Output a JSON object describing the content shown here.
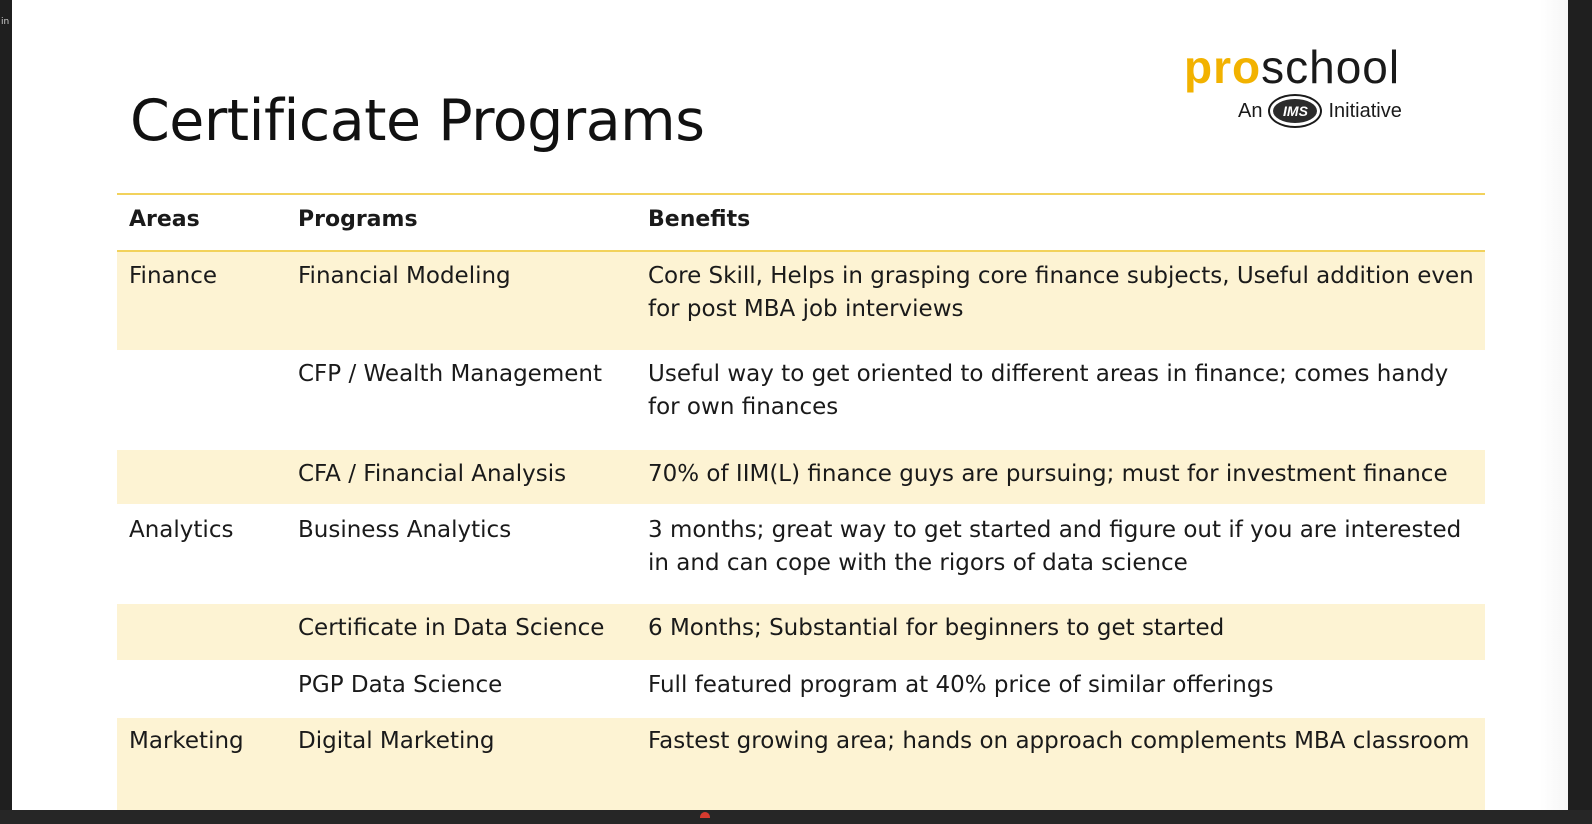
{
  "corner_text": "in",
  "title": "Certificate Programs",
  "logo": {
    "word_pro": "pro",
    "word_school": "school",
    "tag_prefix": "An",
    "badge": "IMS",
    "tag_suffix": "Initiative"
  },
  "colors": {
    "accent": "#f2b200",
    "row_shade": "#fdf3d3",
    "rule": "#f2d25c"
  },
  "table": {
    "headers": [
      "Areas",
      "Programs",
      "Benefits"
    ],
    "rows": [
      {
        "area": "Finance",
        "program": "Financial Modeling",
        "benefit": "Core Skill, Helps in grasping core finance subjects, Useful addition even for post MBA job interviews"
      },
      {
        "area": "",
        "program": "CFP / Wealth Management",
        "benefit": "Useful way to get oriented to different areas in finance; comes handy for own finances"
      },
      {
        "area": "",
        "program": "CFA / Financial Analysis",
        "benefit": "70% of IIM(L) finance guys are pursuing; must for investment finance"
      },
      {
        "area": "Analytics",
        "program": "Business Analytics",
        "benefit": "3 months; great way to get started and figure out if you are interested in and can cope with the rigors of data science"
      },
      {
        "area": "",
        "program": "Certificate in Data Science",
        "benefit": "6 Months; Substantial for beginners to get started"
      },
      {
        "area": "",
        "program": "PGP Data Science",
        "benefit": "Full featured program at 40% price of similar offerings"
      },
      {
        "area": "Marketing",
        "program": "Digital Marketing",
        "benefit": "Fastest growing area; hands on approach complements MBA classroom"
      }
    ]
  }
}
